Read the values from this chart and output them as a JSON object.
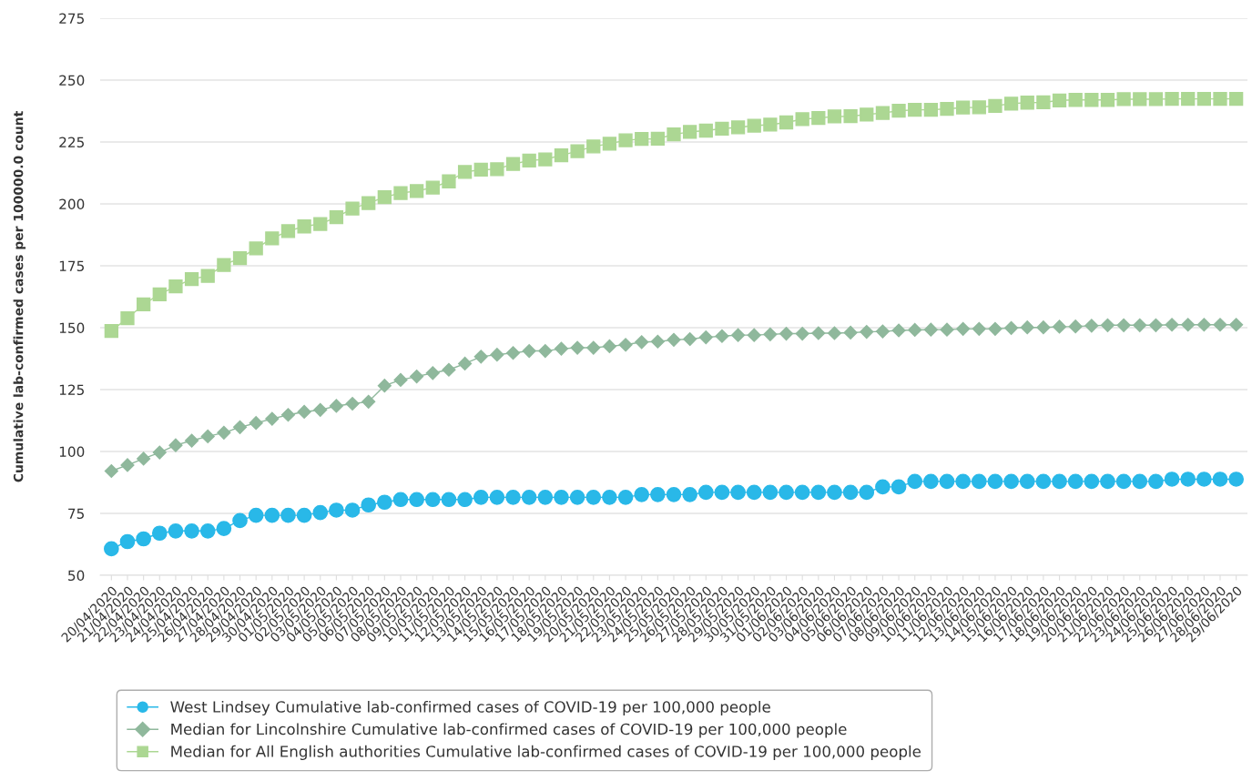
{
  "chart_data": {
    "type": "line",
    "ylabel": "Cumulative lab-confirmed cases per 100000.0 count",
    "categories": [
      "20/04/2020",
      "21/04/2020",
      "22/04/2020",
      "23/04/2020",
      "24/04/2020",
      "25/04/2020",
      "26/04/2020",
      "27/04/2020",
      "28/04/2020",
      "29/04/2020",
      "30/04/2020",
      "01/05/2020",
      "02/05/2020",
      "03/05/2020",
      "04/05/2020",
      "05/05/2020",
      "06/05/2020",
      "07/05/2020",
      "08/05/2020",
      "09/05/2020",
      "10/05/2020",
      "11/05/2020",
      "12/05/2020",
      "13/05/2020",
      "14/05/2020",
      "15/05/2020",
      "16/05/2020",
      "17/05/2020",
      "18/05/2020",
      "19/05/2020",
      "20/05/2020",
      "21/05/2020",
      "22/05/2020",
      "23/05/2020",
      "24/05/2020",
      "25/05/2020",
      "26/05/2020",
      "27/05/2020",
      "28/05/2020",
      "29/05/2020",
      "30/05/2020",
      "31/05/2020",
      "01/06/2020",
      "02/06/2020",
      "03/06/2020",
      "04/06/2020",
      "05/06/2020",
      "06/06/2020",
      "07/06/2020",
      "08/06/2020",
      "09/06/2020",
      "10/06/2020",
      "11/06/2020",
      "12/06/2020",
      "13/06/2020",
      "14/06/2020",
      "15/06/2020",
      "16/06/2020",
      "17/06/2020",
      "18/06/2020",
      "19/06/2020",
      "20/06/2020",
      "21/06/2020",
      "22/06/2020",
      "23/06/2020",
      "24/06/2020",
      "25/06/2020",
      "26/06/2020",
      "27/06/2020",
      "28/06/2020",
      "29/06/2020"
    ],
    "series": [
      {
        "name": "West Lindsey Cumulative lab-confirmed cases of COVID-19 per 100,000 people",
        "color": "#29b8e8",
        "marker": "circle",
        "values": [
          60.7,
          63.6,
          64.7,
          67.0,
          67.9,
          67.9,
          67.9,
          68.9,
          72.1,
          74.2,
          74.2,
          74.2,
          74.2,
          75.3,
          76.3,
          76.3,
          78.4,
          79.5,
          80.6,
          80.6,
          80.6,
          80.6,
          80.6,
          81.5,
          81.5,
          81.5,
          81.5,
          81.5,
          81.5,
          81.5,
          81.5,
          81.5,
          81.5,
          82.6,
          82.6,
          82.6,
          82.6,
          83.5,
          83.5,
          83.5,
          83.5,
          83.5,
          83.5,
          83.5,
          83.5,
          83.5,
          83.5,
          83.5,
          85.7,
          85.7,
          87.9,
          87.9,
          87.9,
          87.9,
          87.9,
          87.9,
          87.9,
          87.9,
          87.9,
          87.9,
          87.9,
          87.9,
          87.9,
          87.9,
          87.9,
          87.9,
          88.8,
          88.8,
          88.8,
          88.8,
          88.8
        ]
      },
      {
        "name": "Median for Lincolnshire Cumulative lab-confirmed cases of COVID-19 per 100,000 people",
        "color": "#8fb89c",
        "marker": "diamond",
        "values": [
          92.1,
          94.5,
          97.1,
          99.6,
          102.5,
          104.4,
          106.1,
          107.6,
          109.8,
          111.5,
          113.2,
          114.8,
          116.0,
          116.8,
          118.4,
          119.3,
          120.1,
          126.6,
          128.9,
          130.3,
          131.7,
          133.0,
          135.5,
          138.3,
          139.1,
          139.8,
          140.6,
          140.6,
          141.5,
          141.9,
          141.9,
          142.5,
          143.1,
          144.2,
          144.4,
          145.1,
          145.4,
          146.1,
          146.6,
          147.0,
          147.0,
          147.3,
          147.6,
          147.6,
          147.8,
          147.8,
          148.0,
          148.3,
          148.5,
          148.9,
          149.1,
          149.2,
          149.2,
          149.5,
          149.5,
          149.5,
          149.9,
          150.1,
          150.1,
          150.4,
          150.5,
          150.8,
          151.0,
          151.0,
          151.0,
          151.0,
          151.2,
          151.2,
          151.2,
          151.2,
          151.2
        ]
      },
      {
        "name": "Median for All English authorities Cumulative lab-confirmed cases of COVID-19 per 100,000 people",
        "color": "#acd793",
        "marker": "square",
        "values": [
          148.7,
          153.8,
          159.4,
          163.5,
          166.7,
          169.6,
          170.9,
          175.3,
          178.1,
          182.0,
          186.1,
          189.0,
          190.9,
          191.9,
          194.6,
          198.1,
          200.3,
          202.7,
          204.4,
          205.2,
          206.6,
          209.1,
          212.9,
          213.8,
          214.0,
          216.1,
          217.5,
          218.0,
          219.6,
          221.3,
          223.2,
          224.3,
          225.7,
          226.2,
          226.3,
          228.1,
          229.1,
          229.6,
          230.4,
          230.9,
          231.6,
          232.0,
          232.9,
          234.2,
          234.7,
          235.3,
          235.4,
          236.1,
          236.7,
          237.6,
          238.0,
          238.0,
          238.4,
          238.9,
          239.0,
          239.6,
          240.5,
          240.9,
          241.0,
          241.8,
          242.0,
          242.0,
          242.0,
          242.3,
          242.3,
          242.3,
          242.4,
          242.4,
          242.4,
          242.4,
          242.4
        ]
      }
    ],
    "ylim": [
      50,
      275
    ],
    "yticks": [
      50,
      75,
      100,
      125,
      150,
      175,
      200,
      225,
      250,
      275
    ],
    "grid": "y",
    "legend": "bottom"
  }
}
